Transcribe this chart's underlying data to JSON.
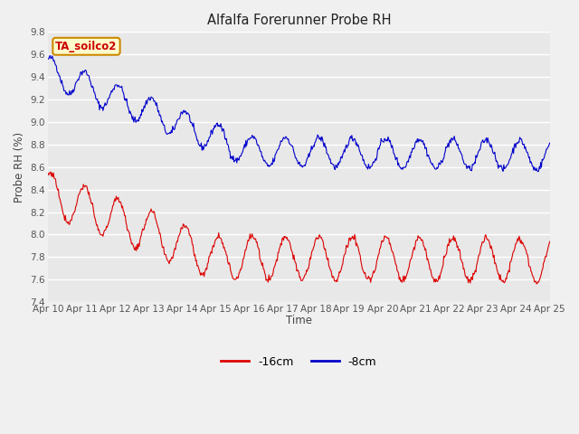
{
  "title": "Alfalfa Forerunner Probe RH",
  "ylabel": "Probe RH (%)",
  "xlabel": "Time",
  "ylim": [
    7.4,
    9.8
  ],
  "fig_bg_color": "#f0f0f0",
  "plot_bg_color": "#e8e8e8",
  "grid_color": "#ffffff",
  "annotation_text": "TA_soilco2",
  "annotation_bg": "#ffffcc",
  "annotation_border": "#cc8800",
  "annotation_text_color": "#cc0000",
  "series_16cm_color": "#dd0000",
  "series_8cm_color": "#0000cc",
  "legend_16cm": "-16cm",
  "legend_8cm": "-8cm",
  "xtick_labels": [
    "Apr 10",
    "Apr 11",
    "Apr 12",
    "Apr 13",
    "Apr 14",
    "Apr 15",
    "Apr 16",
    "Apr 17",
    "Apr 18",
    "Apr 19",
    "Apr 20",
    "Apr 21",
    "Apr 22",
    "Apr 23",
    "Apr 24",
    "Apr 25"
  ],
  "ytick_labels": [
    "7.4",
    "7.6",
    "7.8",
    "8.0",
    "8.2",
    "8.4",
    "8.6",
    "8.8",
    "9.0",
    "9.2",
    "9.4",
    "9.6",
    "9.8"
  ],
  "total_days": 15,
  "points_per_day": 48
}
